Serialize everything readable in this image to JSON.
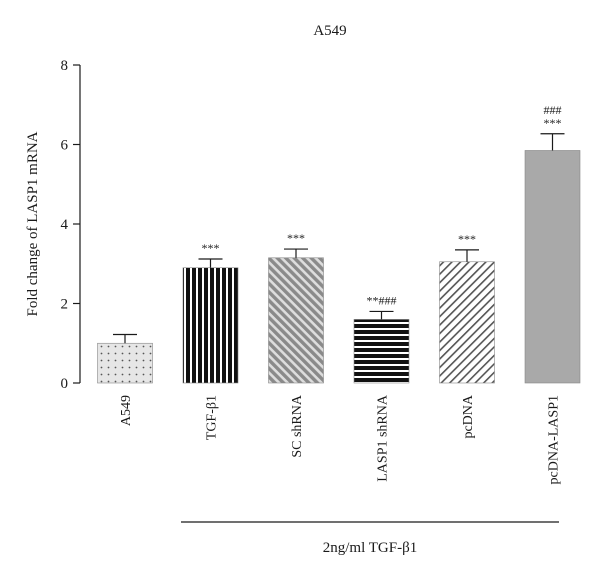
{
  "chart_data": {
    "type": "bar",
    "title": "A549",
    "xlabel": "",
    "ylabel": "Fold change of LASP1 mRNA",
    "ylim": [
      0,
      8
    ],
    "yticks": [
      0,
      2,
      4,
      6,
      8
    ],
    "categories": [
      "A549",
      "TGF-β1",
      "SC shRNA",
      "LASP1 shRNA",
      "pcDNA",
      "pcDNA-LASP1"
    ],
    "values": [
      1.0,
      2.9,
      3.15,
      1.6,
      3.05,
      5.85
    ],
    "errors": [
      0.22,
      0.22,
      0.22,
      0.2,
      0.3,
      0.42
    ],
    "significance": [
      "",
      "***",
      "***",
      "**###",
      "***",
      "###\n***"
    ],
    "patterns": [
      "dots",
      "vertical",
      "diag-right",
      "horizontal",
      "diag-left",
      "solid"
    ],
    "fills": [
      "#e6e6e6",
      "#111111",
      "#9a9a9a",
      "#111111",
      "#ffffff",
      "#a9a9a9"
    ],
    "group_label": "2ng/ml TGF-β1",
    "grid": false,
    "legend": "none"
  }
}
